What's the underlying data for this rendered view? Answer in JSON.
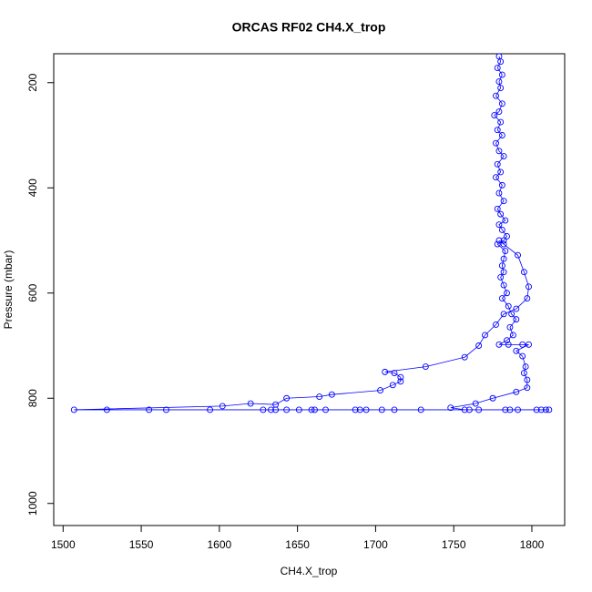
{
  "chart_data": {
    "type": "scatter",
    "title": "ORCAS RF02 CH4.X_trop",
    "x_label": "CH4.X_trop",
    "y_label": "Pressure (mbar)",
    "xlim": [
      1494,
      1821
    ],
    "ylim": [
      1042,
      145
    ],
    "xticks": [
      1500,
      1550,
      1600,
      1650,
      1700,
      1750,
      1800
    ],
    "yticks": [
      200,
      400,
      600,
      800,
      1000
    ],
    "connect": true,
    "x": [
      1779,
      1780,
      1778,
      1781,
      1779,
      1780,
      1777,
      1781,
      1779,
      1776,
      1780,
      1778,
      1781,
      1777,
      1779,
      1782,
      1778,
      1780,
      1777,
      1781,
      1779,
      1782,
      1778,
      1780,
      1783,
      1779,
      1781,
      1784,
      1782,
      1778,
      1783,
      1782,
      1781,
      1782,
      1780,
      1782,
      1784,
      1781,
      1785,
      1787,
      1790,
      1786,
      1788,
      1784,
      1779,
      1785,
      1794,
      1798,
      1790,
      1794,
      1796,
      1795,
      1797,
      1797,
      1790,
      1775,
      1764,
      1748,
      1757,
      1760,
      1766,
      1783,
      1786,
      1791,
      1803,
      1806,
      1809,
      1811,
      1729,
      1712,
      1704,
      1694,
      1690,
      1687,
      1668,
      1661,
      1659,
      1651,
      1643,
      1636,
      1633,
      1628,
      1594,
      1566,
      1555,
      1528,
      1507,
      1602,
      1620,
      1636,
      1643,
      1664,
      1672,
      1703,
      1711,
      1716,
      1716,
      1712,
      1706,
      1732,
      1757,
      1766,
      1770,
      1777,
      1782,
      1790,
      1797,
      1798,
      1795,
      1791,
      1782,
      1779
    ],
    "series": [
      {
        "color": "#0000ff",
        "values": [
          150,
          160,
          172,
          185,
          198,
          210,
          225,
          240,
          255,
          262,
          275,
          290,
          300,
          315,
          330,
          340,
          355,
          370,
          380,
          395,
          410,
          425,
          440,
          450,
          462,
          470,
          480,
          492,
          500,
          507,
          520,
          535,
          548,
          560,
          570,
          585,
          600,
          610,
          625,
          640,
          650,
          665,
          680,
          690,
          698,
          698,
          698,
          698,
          710,
          720,
          740,
          752,
          765,
          780,
          788,
          800,
          810,
          818,
          822,
          822,
          822,
          822,
          822,
          822,
          822,
          822,
          822,
          822,
          822,
          822,
          822,
          822,
          822,
          822,
          822,
          822,
          822,
          822,
          822,
          822,
          822,
          822,
          822,
          822,
          822,
          822,
          822,
          815,
          810,
          812,
          800,
          797,
          793,
          785,
          775,
          768,
          760,
          752,
          750,
          740,
          722,
          700,
          680,
          660,
          640,
          630,
          610,
          588,
          560,
          528,
          507,
          500
        ]
      }
    ]
  }
}
